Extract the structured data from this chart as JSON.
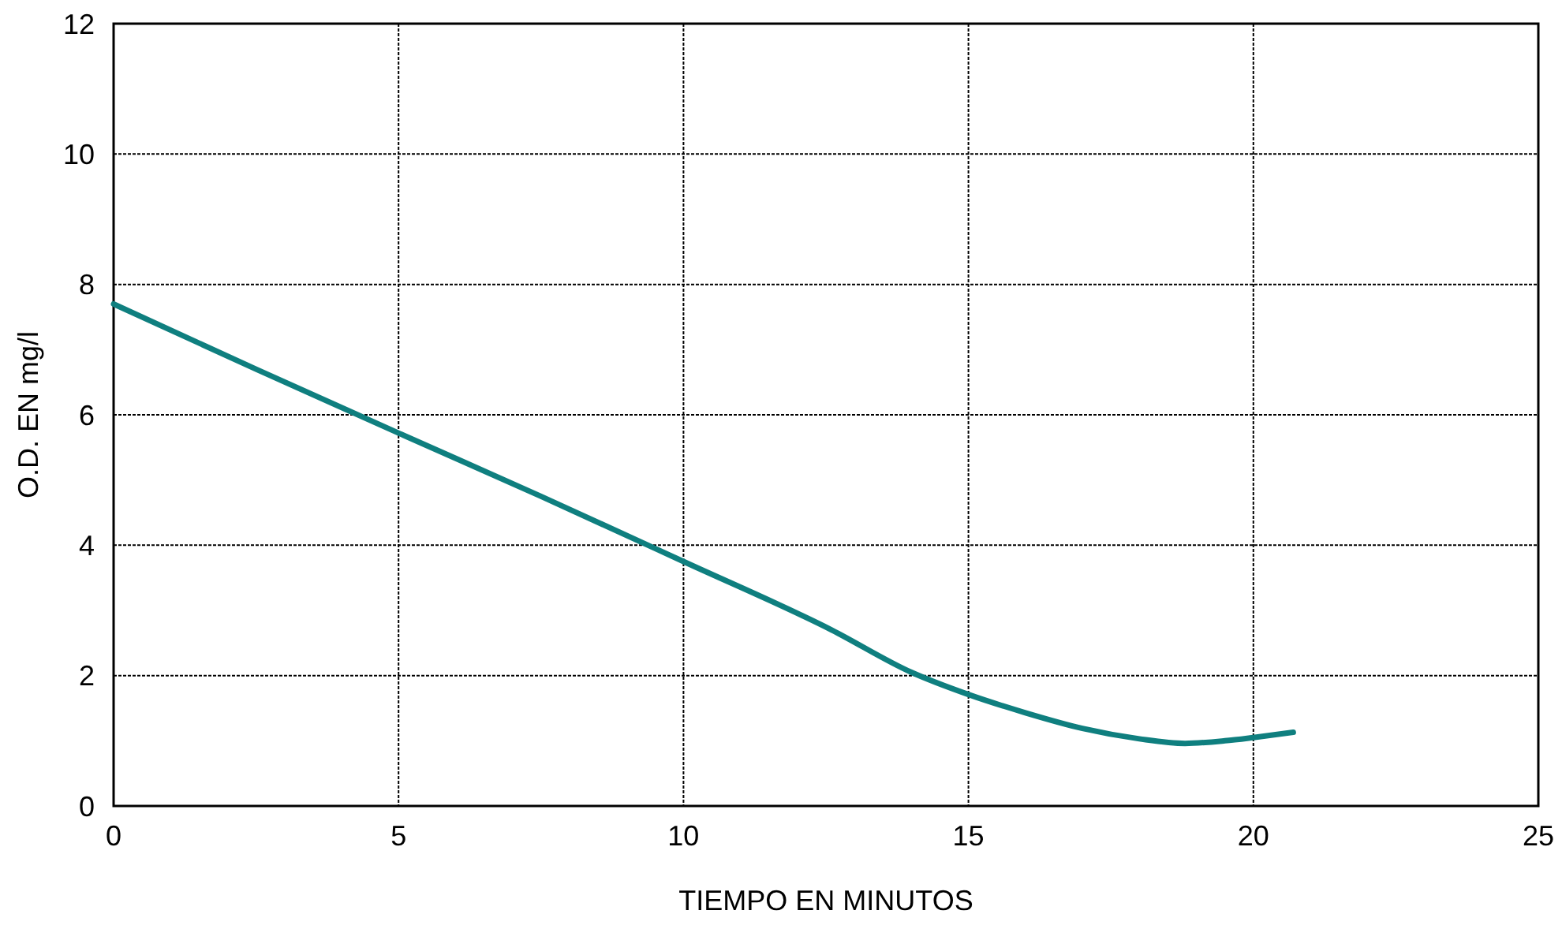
{
  "chart_data": {
    "type": "line",
    "xlabel": "TIEMPO EN MINUTOS",
    "ylabel": "O.D. EN mg/l",
    "xlim": [
      0,
      25
    ],
    "xticks": [
      0,
      5,
      10,
      15,
      20,
      25
    ],
    "ylim": [
      0,
      12
    ],
    "yticks": [
      0,
      2,
      4,
      6,
      8,
      10,
      12
    ],
    "grid": true,
    "marker": "none",
    "line_style": "solid",
    "series": [
      {
        "color": "#0f7f7f",
        "x": [
          0,
          2.5,
          5,
          7.5,
          10,
          12.6,
          14,
          15,
          16,
          17,
          18,
          18.8,
          19.5,
          20,
          20.7
        ],
        "values": [
          7.7,
          6.7,
          5.72,
          4.75,
          3.75,
          2.7,
          2.05,
          1.71,
          1.43,
          1.19,
          1.03,
          0.96,
          1.0,
          1.05,
          1.13
        ]
      }
    ]
  }
}
